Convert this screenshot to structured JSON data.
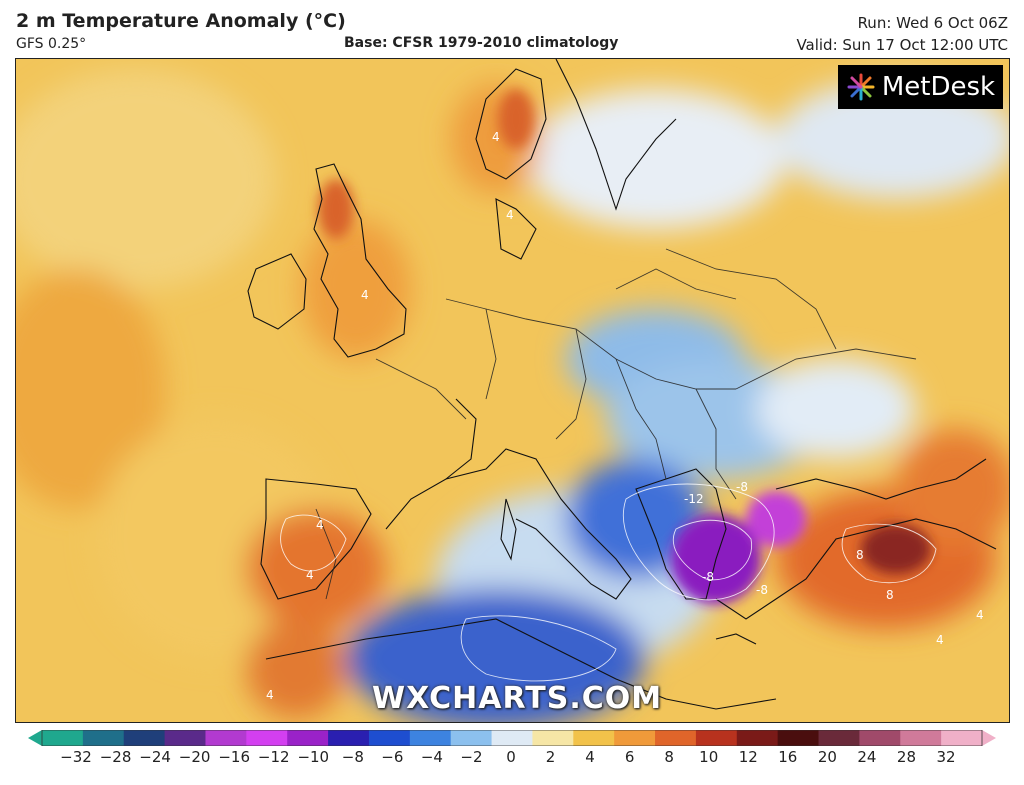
{
  "header": {
    "title": "2 m Temperature Anomaly (°C)",
    "model": "GFS 0.25°",
    "base": "Base: CFSR 1979-2010 climatology",
    "run": "Run: Wed 6 Oct 06Z",
    "valid": "Valid: Sun 17 Oct 12:00 UTC"
  },
  "brand": {
    "name": "MetDesk"
  },
  "watermark": "WXCHARTS.COM",
  "colorbar": {
    "min": -34,
    "max": 34,
    "ticks": [
      "−32",
      "−28",
      "−24",
      "−20",
      "−16",
      "−12",
      "−10",
      "−8",
      "−6",
      "−4",
      "−2",
      "0",
      "2",
      "4",
      "6",
      "8",
      "10",
      "12",
      "16",
      "20",
      "24",
      "28",
      "32"
    ],
    "colors": [
      "#1fa88e",
      "#1f6f8a",
      "#1f3f7a",
      "#5a2a8a",
      "#b23ad0",
      "#d33ff0",
      "#9a22c8",
      "#2a1fb0",
      "#1e4ed0",
      "#3d83e0",
      "#8cc0ee",
      "#dfeaf5",
      "#f6e6a6",
      "#f2c24a",
      "#f09a3a",
      "#e0652a",
      "#b8321e",
      "#7a1a18",
      "#4a0e0e",
      "#6a2a3a",
      "#a04a6a",
      "#d07a9a",
      "#f0b0c8"
    ]
  },
  "map_labels": [
    "4",
    "4",
    "4",
    "4",
    "4",
    "4",
    "8",
    "8",
    "-8",
    "-8",
    "-12",
    "-8",
    "4",
    "4"
  ]
}
